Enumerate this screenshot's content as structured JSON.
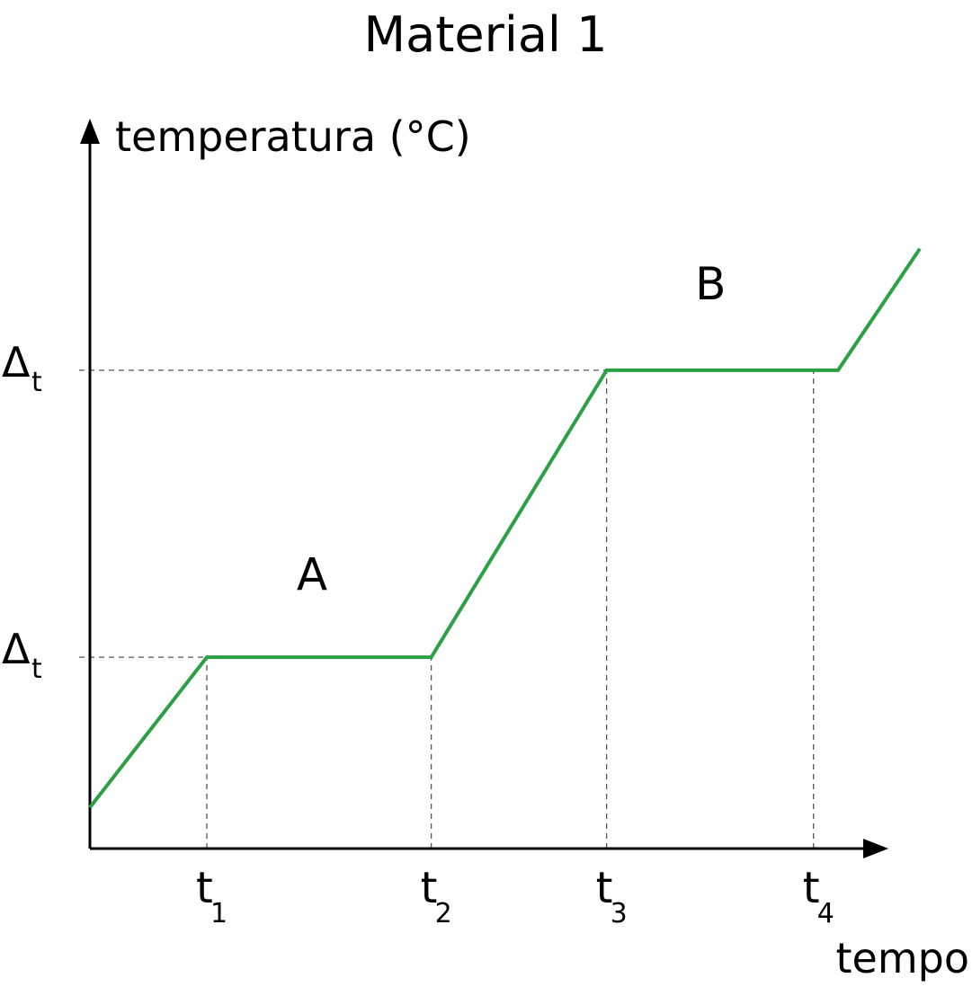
{
  "chart_data": {
    "type": "line",
    "title": "Material 1",
    "ylabel": "temperatura (°C)",
    "xlabel": "tempo",
    "x_ticks": [
      {
        "base": "t",
        "sub": "1",
        "x": 1
      },
      {
        "base": "t",
        "sub": "2",
        "x": 2.92
      },
      {
        "base": "t",
        "sub": "3",
        "x": 4.42
      },
      {
        "base": "t",
        "sub": "4",
        "x": 6.19
      }
    ],
    "y_ticks": [
      {
        "base": "Δ",
        "sub": "t",
        "y": 2
      },
      {
        "base": "Δ",
        "sub": "t",
        "y": 5
      }
    ],
    "xlim": [
      0,
      7
    ],
    "ylim": [
      0,
      7
    ],
    "series": [
      {
        "color": "#2ca044",
        "points": [
          [
            0,
            0.43
          ],
          [
            1,
            2
          ],
          [
            2.92,
            2
          ],
          [
            4.42,
            5
          ],
          [
            6.4,
            5
          ],
          [
            7.1,
            6.27
          ]
        ]
      }
    ],
    "annotations": [
      {
        "text": "A",
        "x": 1.9,
        "y": 2.7
      },
      {
        "text": "B",
        "x": 5.31,
        "y": 5.74
      }
    ],
    "reference_lines": [
      {
        "orientation": "horizontal",
        "y": 2
      },
      {
        "orientation": "horizontal",
        "y": 5
      },
      {
        "orientation": "vertical",
        "x": 1
      },
      {
        "orientation": "vertical",
        "x": 2.92
      },
      {
        "orientation": "vertical",
        "x": 4.42
      },
      {
        "orientation": "vertical",
        "x": 6.19
      }
    ]
  }
}
